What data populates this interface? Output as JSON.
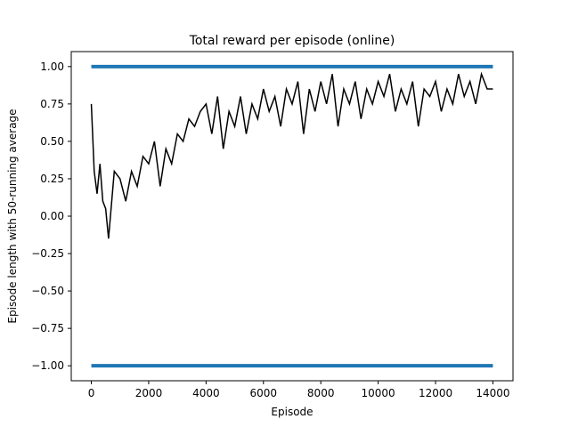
{
  "chart_data": {
    "type": "line",
    "title": "Total reward per episode (online)",
    "xlabel": "Episode",
    "ylabel": "Episode length with 50-running average",
    "xlim": [
      -700,
      14700
    ],
    "ylim": [
      -1.1,
      1.1
    ],
    "xticks": [
      0,
      2000,
      4000,
      6000,
      8000,
      10000,
      12000,
      14000
    ],
    "yticks": [
      -1.0,
      -0.75,
      -0.5,
      -0.25,
      0.0,
      0.25,
      0.5,
      0.75,
      1.0
    ],
    "xtick_labels": [
      "0",
      "2000",
      "4000",
      "6000",
      "8000",
      "10000",
      "12000",
      "14000"
    ],
    "ytick_labels": [
      "−1.00",
      "−0.75",
      "−0.50",
      "−0.25",
      "0.00",
      "0.25",
      "0.50",
      "0.75",
      "1.00"
    ],
    "grid": false,
    "series": [
      {
        "kind": "scatter",
        "color": "#1f77b4",
        "x_range": [
          0,
          14000
        ],
        "y_levels": [
          1.0,
          -1.0
        ]
      },
      {
        "kind": "line",
        "color": "#000000",
        "x": [
          0,
          100,
          200,
          300,
          400,
          500,
          600,
          800,
          1000,
          1200,
          1400,
          1600,
          1800,
          2000,
          2200,
          2400,
          2600,
          2800,
          3000,
          3200,
          3400,
          3600,
          3800,
          4000,
          4200,
          4400,
          4600,
          4800,
          5000,
          5200,
          5400,
          5600,
          5800,
          6000,
          6200,
          6400,
          6600,
          6800,
          7000,
          7200,
          7400,
          7600,
          7800,
          8000,
          8200,
          8400,
          8600,
          8800,
          9000,
          9200,
          9400,
          9600,
          9800,
          10000,
          10200,
          10400,
          10600,
          10800,
          11000,
          11200,
          11400,
          11600,
          11800,
          12000,
          12200,
          12400,
          12600,
          12800,
          13000,
          13200,
          13400,
          13600,
          13800,
          14000
        ],
        "y": [
          0.75,
          0.3,
          0.15,
          0.35,
          0.1,
          0.05,
          -0.15,
          0.3,
          0.25,
          0.1,
          0.3,
          0.2,
          0.4,
          0.35,
          0.5,
          0.2,
          0.45,
          0.35,
          0.55,
          0.5,
          0.65,
          0.6,
          0.7,
          0.75,
          0.55,
          0.8,
          0.45,
          0.7,
          0.6,
          0.8,
          0.55,
          0.75,
          0.65,
          0.85,
          0.7,
          0.8,
          0.6,
          0.85,
          0.75,
          0.9,
          0.55,
          0.85,
          0.7,
          0.9,
          0.75,
          0.95,
          0.6,
          0.85,
          0.75,
          0.9,
          0.65,
          0.85,
          0.75,
          0.9,
          0.8,
          0.95,
          0.7,
          0.85,
          0.75,
          0.9,
          0.6,
          0.85,
          0.8,
          0.9,
          0.7,
          0.85,
          0.75,
          0.95,
          0.8,
          0.9,
          0.75,
          0.95,
          0.85,
          0.85
        ]
      }
    ]
  }
}
